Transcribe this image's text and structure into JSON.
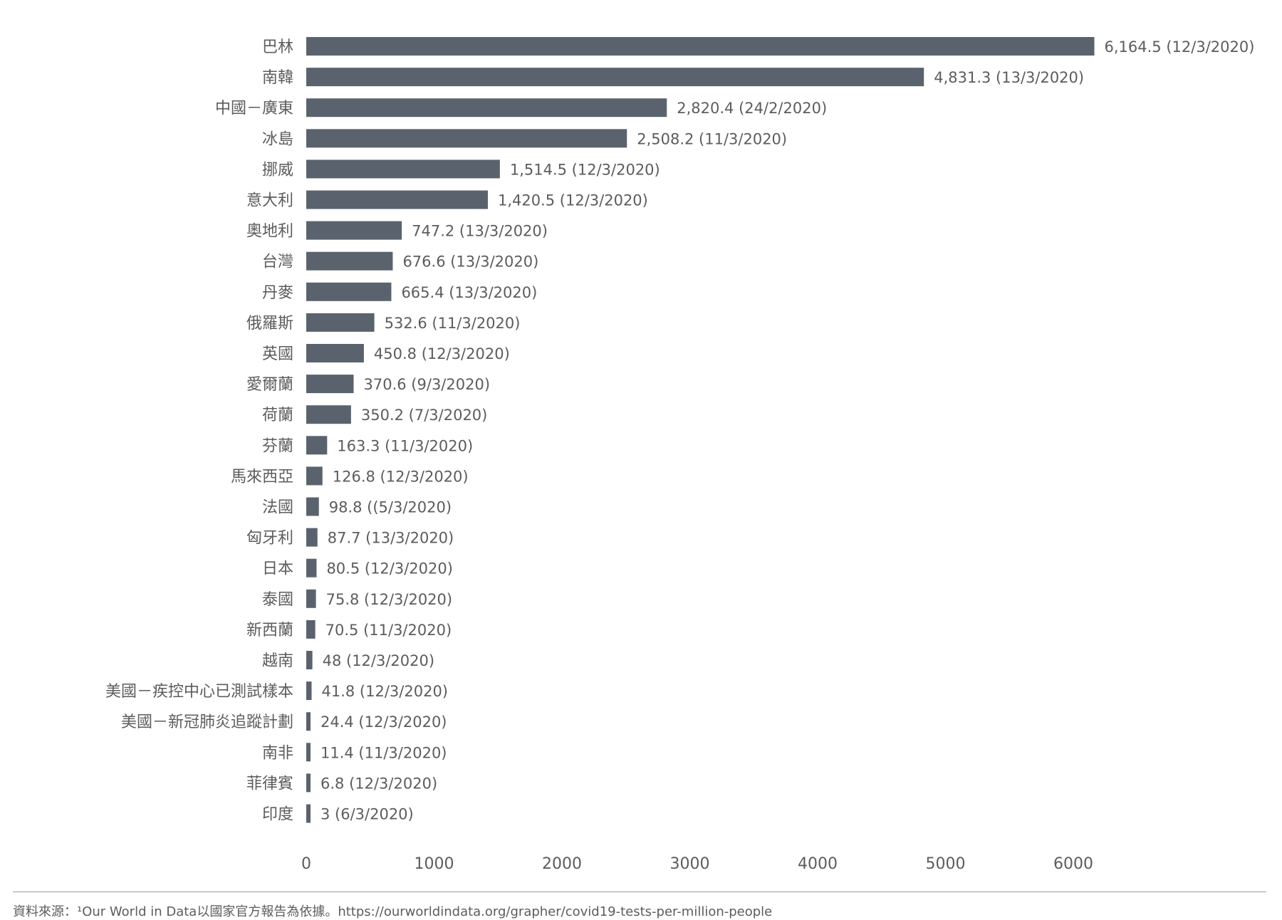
{
  "chart_data": {
    "type": "bar",
    "orientation": "horizontal",
    "bar_color": "#5a636d",
    "text_color": "#5c5c5c",
    "xlim": [
      0,
      6000
    ],
    "xticks": [
      "0",
      "1000",
      "2000",
      "3000",
      "4000",
      "5000",
      "6000"
    ],
    "grid": false,
    "categories": [
      "巴林",
      "南韓",
      "中國－廣東",
      "冰島",
      "挪威",
      "意大利",
      "奧地利",
      "台灣",
      "丹麥",
      "俄羅斯",
      "英國",
      "愛爾蘭",
      "荷蘭",
      "芬蘭",
      "馬來西亞",
      "法國",
      "匈牙利",
      "日本",
      "泰國",
      "新西蘭",
      "越南",
      "美國－疾控中心已測試樣本",
      "美國－新冠肺炎追蹤計劃",
      "南非",
      "菲律賓",
      "印度"
    ],
    "values": [
      6164.5,
      4831.3,
      2820.4,
      2508.2,
      1514.5,
      1420.5,
      747.2,
      676.6,
      665.4,
      532.6,
      450.8,
      370.6,
      350.2,
      163.3,
      126.8,
      98.8,
      87.7,
      80.5,
      75.8,
      70.5,
      48,
      41.8,
      24.4,
      11.4,
      6.8,
      3
    ],
    "data_labels": [
      "6,164.5 (12/3/2020)",
      "4,831.3 (13/3/2020)",
      "2,820.4 (24/2/2020)",
      "2,508.2 (11/3/2020)",
      "1,514.5 (12/3/2020)",
      "1,420.5 (12/3/2020)",
      "747.2 (13/3/2020)",
      "676.6 (13/3/2020)",
      "665.4 (13/3/2020)",
      "532.6 (11/3/2020)",
      "450.8 (12/3/2020)",
      "370.6 (9/3/2020)",
      "350.2 (7/3/2020)",
      "163.3 (11/3/2020)",
      "126.8 (12/3/2020)",
      "98.8 ((5/3/2020)",
      "87.7 (13/3/2020)",
      "80.5 (12/3/2020)",
      "75.8 (12/3/2020)",
      "70.5 (11/3/2020)",
      "48 (12/3/2020)",
      "41.8 (12/3/2020)",
      "24.4 (12/3/2020)",
      "11.4 (11/3/2020)",
      "6.8 (12/3/2020)",
      "3 (6/3/2020)"
    ]
  },
  "footer": {
    "source": "資料來源：¹Our World in Data以國家官方報告為依據。https://ourworldindata.org/grapher/covid19-tests-per-million-people"
  }
}
